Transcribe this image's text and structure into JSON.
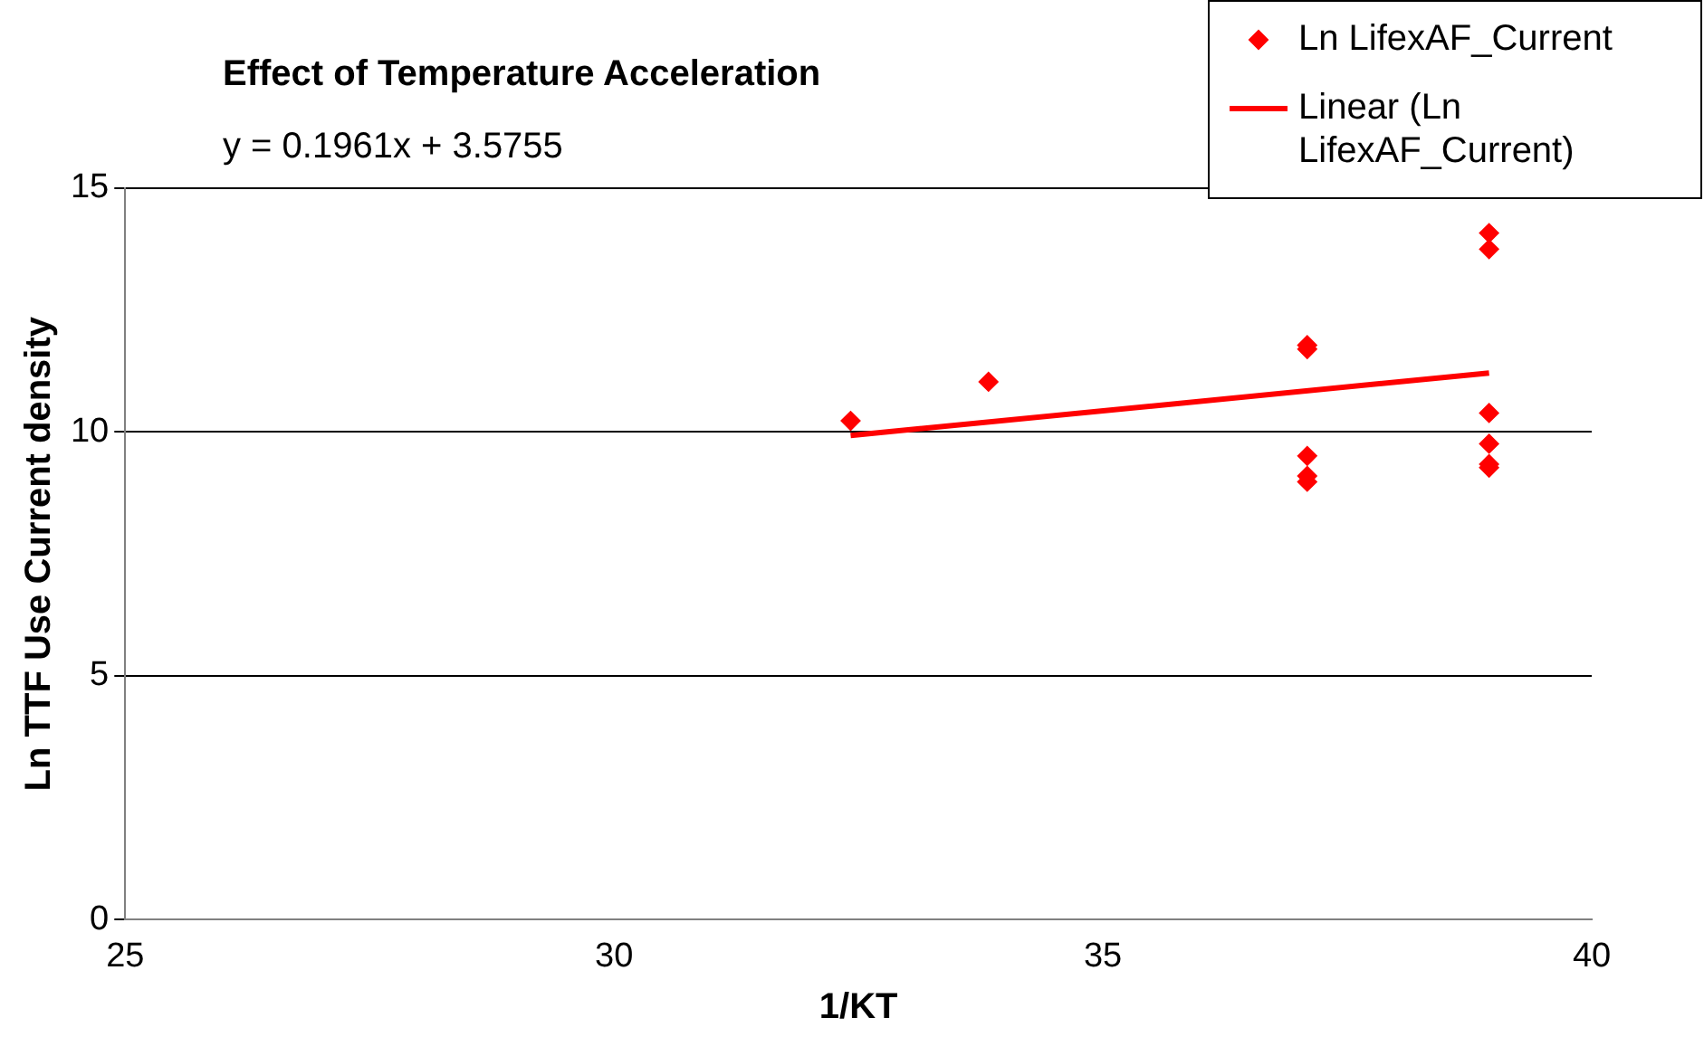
{
  "chart_data": {
    "type": "scatter",
    "title": "Effect of Temperature Acceleration",
    "xlabel": "1/KT",
    "ylabel": "Ln TTF Use Current density",
    "annotations": [
      "y = 0.1961x + 3.5755"
    ],
    "series": [
      {
        "name": "Ln LifexAF_Current",
        "type": "scatter",
        "color": "#ff0000",
        "marker": "diamond",
        "x": [
          32.42,
          33.83,
          37.09,
          37.09,
          37.09,
          37.09,
          37.09,
          38.95,
          38.95,
          38.95,
          38.95,
          38.95,
          38.95
        ],
        "values": [
          10.23,
          11.03,
          11.78,
          11.7,
          9.51,
          9.1,
          8.98,
          14.08,
          13.75,
          10.39,
          9.76,
          9.34,
          9.27
        ]
      },
      {
        "name": "Linear (Ln LifexAF_Current)",
        "type": "line",
        "color": "#ff0000",
        "marker": "none",
        "x": [
          32.42,
          38.95
        ],
        "values": [
          9.93,
          11.21
        ]
      }
    ],
    "xlim": [
      25,
      40
    ],
    "xticks": [
      25,
      30,
      35,
      40
    ],
    "ylim": [
      0,
      15
    ],
    "yticks": [
      0,
      5,
      10,
      15
    ],
    "grid": "y",
    "legend": "top right"
  }
}
